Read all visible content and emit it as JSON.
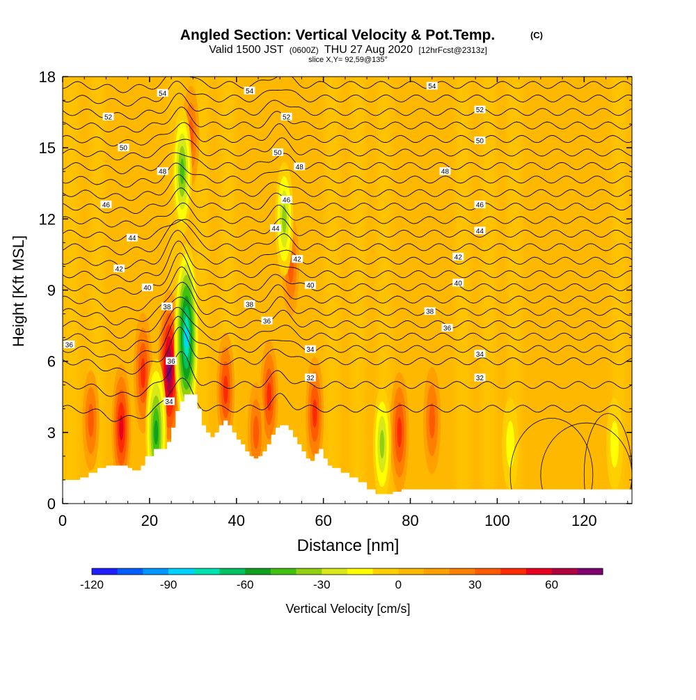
{
  "chart_data": {
    "type": "heatmap",
    "title": "Angled Section: Vertical Velocity & Pot.Temp.",
    "title_unit": "(C)",
    "subtitle_parts": [
      "Valid 1500 JST",
      "(0600Z)",
      "THU 27 Aug 2020",
      "[12hrFcst@2313z]"
    ],
    "slice_label": "slice X,Y= 92,59@135°",
    "xlabel": "Distance [nm]",
    "ylabel": "Height [Kft MSL]",
    "xlim": [
      0,
      131
    ],
    "ylim": [
      0,
      18
    ],
    "xticks": [
      0,
      20,
      40,
      60,
      80,
      100,
      120
    ],
    "yticks": [
      0,
      3,
      6,
      9,
      12,
      15,
      18
    ],
    "grid": false,
    "colorbar": {
      "label": "Vertical Velocity [cm/s]",
      "range": [
        -120,
        80
      ],
      "step": 10,
      "tick_values": [
        -120,
        -90,
        -60,
        -30,
        0,
        30,
        60
      ],
      "tick_labels": [
        "-120",
        "-90",
        "-60",
        "-30",
        "0",
        "30",
        "60"
      ],
      "colors": [
        "#1f1fff",
        "#005eff",
        "#0096ff",
        "#00d2ff",
        "#00e0b0",
        "#00c060",
        "#10a020",
        "#40c010",
        "#90d010",
        "#d8e818",
        "#ffff00",
        "#ffd000",
        "#ffb800",
        "#ffa000",
        "#ff8000",
        "#ff5a00",
        "#ff2a00",
        "#e80020",
        "#b00040",
        "#800070"
      ]
    },
    "terrain": [
      [
        0,
        1
      ],
      [
        2,
        1
      ],
      [
        4,
        1.1
      ],
      [
        6,
        1.3
      ],
      [
        8,
        1.5
      ],
      [
        10,
        1.6
      ],
      [
        13,
        1.6
      ],
      [
        15,
        1.5
      ],
      [
        16,
        1.4
      ],
      [
        18,
        1.6
      ],
      [
        19,
        2.0
      ],
      [
        21,
        2.3
      ],
      [
        23,
        2.3
      ],
      [
        24,
        2.6
      ],
      [
        25,
        3.2
      ],
      [
        26,
        3.9
      ],
      [
        27,
        4.3
      ],
      [
        28,
        4.6
      ],
      [
        30,
        4.6
      ],
      [
        31,
        4.0
      ],
      [
        32,
        3.3
      ],
      [
        33,
        3.0
      ],
      [
        34,
        2.8
      ],
      [
        35,
        3.0
      ],
      [
        36,
        3.3
      ],
      [
        37,
        3.5
      ],
      [
        38,
        3.3
      ],
      [
        39,
        3.0
      ],
      [
        40,
        2.7
      ],
      [
        41,
        2.5
      ],
      [
        42,
        2.2
      ],
      [
        43,
        2.0
      ],
      [
        44,
        1.9
      ],
      [
        45,
        2.0
      ],
      [
        46,
        2.2
      ],
      [
        47,
        2.5
      ],
      [
        48,
        2.9
      ],
      [
        49,
        3.2
      ],
      [
        50,
        3.3
      ],
      [
        51,
        3.3
      ],
      [
        52,
        3.1
      ],
      [
        53,
        2.8
      ],
      [
        54,
        2.5
      ],
      [
        55,
        2.2
      ],
      [
        56,
        1.9
      ],
      [
        57,
        1.8
      ],
      [
        58,
        2.1
      ],
      [
        59,
        2.3
      ],
      [
        60,
        1.9
      ],
      [
        61,
        1.6
      ],
      [
        62,
        1.5
      ],
      [
        64,
        1.3
      ],
      [
        66,
        1.1
      ],
      [
        68,
        0.9
      ],
      [
        70,
        0.6
      ],
      [
        72,
        0.4
      ],
      [
        74,
        0.4
      ],
      [
        76,
        0.5
      ],
      [
        78,
        0.6
      ],
      [
        80,
        0.6
      ],
      [
        131,
        0.6
      ]
    ],
    "updrafts": [
      {
        "x": 24.5,
        "z": 5.6,
        "w": 70
      },
      {
        "x": 13.5,
        "z": 3.2,
        "w": 45
      },
      {
        "x": 18.5,
        "z": 5.5,
        "w": 40
      },
      {
        "x": 37.5,
        "z": 4.8,
        "w": 35
      },
      {
        "x": 47.5,
        "z": 4.5,
        "w": 35
      },
      {
        "x": 58.0,
        "z": 3.8,
        "w": 35
      },
      {
        "x": 77.5,
        "z": 3.0,
        "w": 40
      },
      {
        "x": 85.0,
        "z": 3.5,
        "w": 30
      },
      {
        "x": 6.5,
        "z": 3.5,
        "w": 25
      },
      {
        "x": 29.5,
        "z": 15.5,
        "w": 25
      },
      {
        "x": 44.5,
        "z": 3.0,
        "w": 25
      },
      {
        "x": 52.5,
        "z": 10.0,
        "w": 25
      }
    ],
    "downdrafts": [
      {
        "x": 28.5,
        "z": 7.0,
        "w": -90
      },
      {
        "x": 27.5,
        "z": 14.0,
        "w": -45
      },
      {
        "x": 51.0,
        "z": 12.0,
        "w": -35
      },
      {
        "x": 21.5,
        "z": 3.0,
        "w": -60
      },
      {
        "x": 73.5,
        "z": 2.5,
        "w": -35
      },
      {
        "x": 103.0,
        "z": 2.5,
        "w": -20
      },
      {
        "x": 127.0,
        "z": 2.5,
        "w": -20
      }
    ],
    "isentrope_values": [
      32,
      33,
      34,
      35,
      36,
      37,
      38,
      39,
      40,
      41,
      42,
      43,
      44,
      45,
      46,
      47,
      48,
      49,
      50,
      51,
      52,
      53,
      54,
      55
    ],
    "isentrope_labels": [
      {
        "x": 1.5,
        "z": 6.7,
        "text": "36"
      },
      {
        "x": 25.0,
        "z": 6.0,
        "text": "36"
      },
      {
        "x": 24.5,
        "z": 4.3,
        "text": "34"
      },
      {
        "x": 24.0,
        "z": 8.3,
        "text": "38"
      },
      {
        "x": 19.5,
        "z": 9.1,
        "text": "40"
      },
      {
        "x": 13.0,
        "z": 9.9,
        "text": "42"
      },
      {
        "x": 16.0,
        "z": 11.2,
        "text": "44"
      },
      {
        "x": 10.0,
        "z": 12.6,
        "text": "46"
      },
      {
        "x": 23.0,
        "z": 14.0,
        "text": "48"
      },
      {
        "x": 14.0,
        "z": 15.0,
        "text": "50"
      },
      {
        "x": 10.5,
        "z": 16.3,
        "text": "52"
      },
      {
        "x": 23.0,
        "z": 17.3,
        "text": "54"
      },
      {
        "x": 43.0,
        "z": 17.4,
        "text": "54"
      },
      {
        "x": 51.5,
        "z": 16.3,
        "text": "52"
      },
      {
        "x": 49.5,
        "z": 14.8,
        "text": "50"
      },
      {
        "x": 54.5,
        "z": 14.2,
        "text": "48"
      },
      {
        "x": 51.5,
        "z": 12.8,
        "text": "46"
      },
      {
        "x": 49.0,
        "z": 11.6,
        "text": "44"
      },
      {
        "x": 54.0,
        "z": 10.3,
        "text": "42"
      },
      {
        "x": 57.0,
        "z": 9.2,
        "text": "40"
      },
      {
        "x": 43.0,
        "z": 8.4,
        "text": "38"
      },
      {
        "x": 47.0,
        "z": 7.7,
        "text": "36"
      },
      {
        "x": 57.0,
        "z": 6.5,
        "text": "34"
      },
      {
        "x": 57.0,
        "z": 5.3,
        "text": "32"
      },
      {
        "x": 85.0,
        "z": 17.6,
        "text": "54"
      },
      {
        "x": 96.0,
        "z": 16.6,
        "text": "52"
      },
      {
        "x": 96.0,
        "z": 15.3,
        "text": "50"
      },
      {
        "x": 88.0,
        "z": 14.0,
        "text": "48"
      },
      {
        "x": 96.0,
        "z": 12.6,
        "text": "46"
      },
      {
        "x": 96.0,
        "z": 11.5,
        "text": "44"
      },
      {
        "x": 91.0,
        "z": 10.4,
        "text": "42"
      },
      {
        "x": 91.0,
        "z": 9.3,
        "text": "40"
      },
      {
        "x": 84.5,
        "z": 8.1,
        "text": "38"
      },
      {
        "x": 88.5,
        "z": 7.4,
        "text": "36"
      },
      {
        "x": 96.0,
        "z": 6.3,
        "text": "34"
      },
      {
        "x": 96.0,
        "z": 5.3,
        "text": "32"
      }
    ]
  }
}
